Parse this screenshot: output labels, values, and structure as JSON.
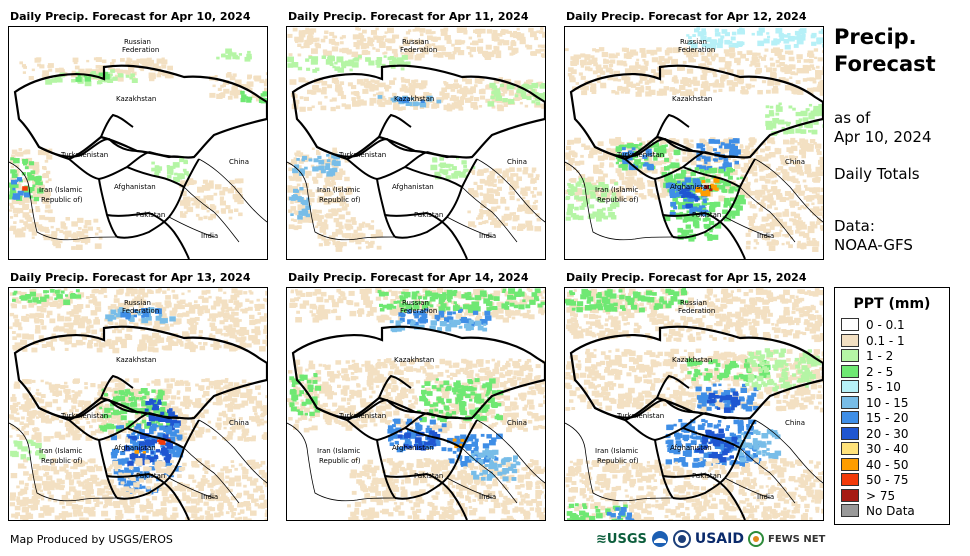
{
  "panels": [
    {
      "title": "Daily Precip. Forecast for Apr 10, 2024"
    },
    {
      "title": "Daily Precip. Forecast for Apr 11, 2024"
    },
    {
      "title": "Daily Precip. Forecast for Apr 12, 2024"
    },
    {
      "title": "Daily Precip. Forecast for Apr 13, 2024"
    },
    {
      "title": "Daily Precip. Forecast for Apr 14, 2024"
    },
    {
      "title": "Daily Precip. Forecast for Apr 15, 2024"
    }
  ],
  "map_labels": {
    "russia1": "Russian",
    "russia2": "Federation",
    "kazakhstan": "Kazakhstan",
    "turkmenistan": "Turkmenistan",
    "china": "China",
    "iran1": "Iran  (Islamic",
    "iran2": "Republic of)",
    "afghanistan": "Afghanistan",
    "pakistan": "Pakistan",
    "india": "India"
  },
  "side": {
    "title1": "Precip.",
    "title2": "Forecast",
    "asof1": "as of",
    "asof2": "Apr 10, 2024",
    "totals": "Daily Totals",
    "data1": "Data:",
    "data2": "NOAA-GFS"
  },
  "legend": {
    "title": "PPT (mm)",
    "items": [
      {
        "label": "0 - 0.1",
        "color": "#ffffff"
      },
      {
        "label": "0.1 - 1",
        "color": "#f3e0c2"
      },
      {
        "label": "1 - 2",
        "color": "#b5f5a5"
      },
      {
        "label": "2 - 5",
        "color": "#6fe873"
      },
      {
        "label": "5 - 10",
        "color": "#b6f0f7"
      },
      {
        "label": "10 - 15",
        "color": "#78bde8"
      },
      {
        "label": "15 - 20",
        "color": "#3f8ee6"
      },
      {
        "label": "20 - 30",
        "color": "#1f56d1"
      },
      {
        "label": "30 - 40",
        "color": "#ffe27a"
      },
      {
        "label": "40 - 50",
        "color": "#ff9d00"
      },
      {
        "label": "50 - 75",
        "color": "#f23b0a"
      },
      {
        "label": "> 75",
        "color": "#a61c14"
      },
      {
        "label": "No Data",
        "color": "#999999"
      }
    ]
  },
  "credit": "Map Produced by USGS/EROS",
  "logos": {
    "usgs": "USGS",
    "usaid": "USAID",
    "fews": "FEWS NET"
  }
}
